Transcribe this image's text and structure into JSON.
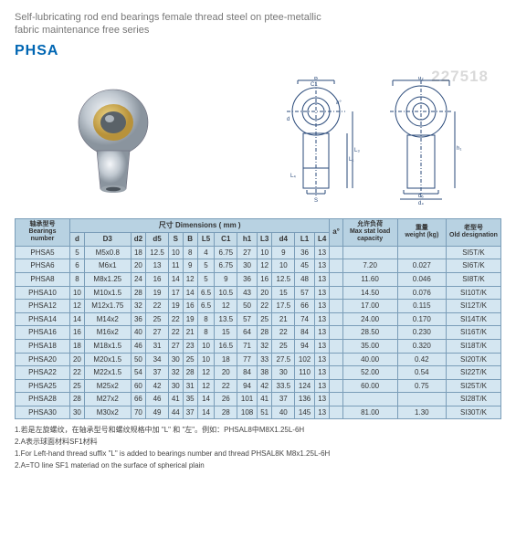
{
  "subtitle_line1": "Self-lubricating rod end bearings female thread steel on ptee-metallic",
  "subtitle_line2": "fabric maintenance free series",
  "series": "PHSA",
  "watermark": "227518",
  "headers": {
    "bearings": {
      "zh": "轴承型号",
      "en": "Bearings number"
    },
    "dimensions": {
      "zh": "尺寸",
      "en": "Dimensions ( mm )"
    },
    "angle": "a°",
    "load": {
      "zh": "允许负荷",
      "en": "Max stat load capacity"
    },
    "weight": {
      "zh": "重量",
      "en": "weight (kg)"
    },
    "old": {
      "zh": "老型号",
      "en": "Old designation"
    },
    "cols": [
      "d",
      "D3",
      "d2",
      "d5",
      "S",
      "B",
      "L5",
      "C1",
      "h1",
      "L3",
      "d4",
      "L1",
      "L4"
    ]
  },
  "rows": [
    [
      "PHSA5",
      "5",
      "M5x0.8",
      "18",
      "12.5",
      "10",
      "8",
      "4",
      "6.75",
      "27",
      "10",
      "9",
      "36",
      "13",
      "",
      "",
      "",
      "SI5T/K"
    ],
    [
      "PHSA6",
      "6",
      "M6x1",
      "20",
      "13",
      "11",
      "9",
      "5",
      "6.75",
      "30",
      "12",
      "10",
      "45",
      "13",
      "",
      "7.20",
      "0.027",
      "SI6T/K"
    ],
    [
      "PHSA8",
      "8",
      "M8x1.25",
      "24",
      "16",
      "14",
      "12",
      "5",
      "9",
      "36",
      "16",
      "12.5",
      "48",
      "13",
      "",
      "11.60",
      "0.046",
      "SI8T/K"
    ],
    [
      "PHSA10",
      "10",
      "M10x1.5",
      "28",
      "19",
      "17",
      "14",
      "6.5",
      "10.5",
      "43",
      "20",
      "15",
      "57",
      "13",
      "",
      "14.50",
      "0.076",
      "SI10T/K"
    ],
    [
      "PHSA12",
      "12",
      "M12x1.75",
      "32",
      "22",
      "19",
      "16",
      "6.5",
      "12",
      "50",
      "22",
      "17.5",
      "66",
      "13",
      "",
      "17.00",
      "0.115",
      "SI12T/K"
    ],
    [
      "PHSA14",
      "14",
      "M14x2",
      "36",
      "25",
      "22",
      "19",
      "8",
      "13.5",
      "57",
      "25",
      "21",
      "74",
      "13",
      "",
      "24.00",
      "0.170",
      "SI14T/K"
    ],
    [
      "PHSA16",
      "16",
      "M16x2",
      "40",
      "27",
      "22",
      "21",
      "8",
      "15",
      "64",
      "28",
      "22",
      "84",
      "13",
      "",
      "28.50",
      "0.230",
      "SI16T/K"
    ],
    [
      "PHSA18",
      "18",
      "M18x1.5",
      "46",
      "31",
      "27",
      "23",
      "10",
      "16.5",
      "71",
      "32",
      "25",
      "94",
      "13",
      "",
      "35.00",
      "0.320",
      "SI18T/K"
    ],
    [
      "PHSA20",
      "20",
      "M20x1.5",
      "50",
      "34",
      "30",
      "25",
      "10",
      "18",
      "77",
      "33",
      "27.5",
      "102",
      "13",
      "",
      "40.00",
      "0.42",
      "SI20T/K"
    ],
    [
      "PHSA22",
      "22",
      "M22x1.5",
      "54",
      "37",
      "32",
      "28",
      "12",
      "20",
      "84",
      "38",
      "30",
      "110",
      "13",
      "",
      "52.00",
      "0.54",
      "SI22T/K"
    ],
    [
      "PHSA25",
      "25",
      "M25x2",
      "60",
      "42",
      "30",
      "31",
      "12",
      "22",
      "94",
      "42",
      "33.5",
      "124",
      "13",
      "",
      "60.00",
      "0.75",
      "SI25T/K"
    ],
    [
      "PHSA28",
      "28",
      "M27x2",
      "66",
      "46",
      "41",
      "35",
      "14",
      "26",
      "101",
      "41",
      "37",
      "136",
      "13",
      "",
      "",
      "",
      "SI28T/K"
    ],
    [
      "PHSA30",
      "30",
      "M30x2",
      "70",
      "49",
      "44",
      "37",
      "14",
      "28",
      "108",
      "51",
      "40",
      "145",
      "13",
      "",
      "81.00",
      "1.30",
      "SI30T/K"
    ]
  ],
  "notes": [
    "1.若是左旋螺纹，在轴承型号和螺纹规格中加 \"L\" 和 \"左\"。例如：PHSAL8中M8X1.25L-6H",
    "2.A表示球面材料SF1材料",
    "1.For Left-hand thread suffix \"L\" is added to bearings number and thread PHSAL8K M8x1.25L-6H",
    "2.A=TO line SF1 materiad on the surface of spherical plain"
  ]
}
